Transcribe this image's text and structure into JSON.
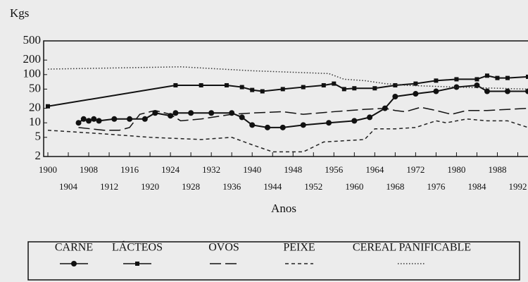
{
  "chart_data": {
    "type": "line",
    "y_label": "Kgs",
    "x_label": "Anos",
    "log_y": true,
    "xlim": [
      1900,
      1994
    ],
    "xticks": [
      1900,
      1904,
      1908,
      1912,
      1916,
      1920,
      1924,
      1928,
      1932,
      1936,
      1940,
      1944,
      1948,
      1952,
      1956,
      1960,
      1964,
      1968,
      1972,
      1976,
      1980,
      1984,
      1988,
      1992
    ],
    "ylim": [
      2,
      500
    ],
    "yticks": [
      500,
      200,
      100,
      50,
      20,
      10,
      5,
      2
    ],
    "series": [
      {
        "name": "CARNE",
        "color": "#111111",
        "line_style": "solid",
        "marker": "circle",
        "x": [
          1906,
          1907,
          1908,
          1909,
          1910,
          1913,
          1916,
          1919,
          1921,
          1924,
          1925,
          1928,
          1932,
          1936,
          1938,
          1940,
          1943,
          1946,
          1950,
          1955,
          1960,
          1963,
          1966,
          1968,
          1972,
          1976,
          1980,
          1984,
          1986,
          1990,
          1994
        ],
        "values": [
          10,
          12,
          11,
          12,
          11,
          12,
          12,
          12,
          16,
          14,
          16,
          16,
          16,
          16,
          13,
          9,
          8,
          8,
          9,
          10,
          11,
          13,
          20,
          35,
          40,
          45,
          55,
          60,
          45,
          45,
          45
        ]
      },
      {
        "name": "LÁCTEOS",
        "color": "#111111",
        "line_style": "solid",
        "marker": "square",
        "x": [
          1900,
          1925,
          1930,
          1935,
          1938,
          1940,
          1942,
          1946,
          1950,
          1954,
          1956,
          1958,
          1960,
          1964,
          1968,
          1972,
          1976,
          1980,
          1984,
          1986,
          1988,
          1990,
          1994
        ],
        "values": [
          22,
          60,
          60,
          60,
          55,
          48,
          45,
          50,
          55,
          60,
          65,
          50,
          52,
          52,
          60,
          65,
          75,
          80,
          80,
          95,
          85,
          85,
          90
        ]
      },
      {
        "name": "OVOS",
        "color": "#111111",
        "line_style": "long-dash",
        "marker": null,
        "x": [
          1906,
          1911,
          1914,
          1916,
          1918,
          1921,
          1924,
          1926,
          1930,
          1936,
          1940,
          1946,
          1950,
          1956,
          1962,
          1966,
          1968,
          1970,
          1973,
          1976,
          1979,
          1982,
          1986,
          1994
        ],
        "values": [
          8,
          7,
          7,
          8,
          15,
          18,
          15,
          11,
          12,
          15,
          16,
          17,
          15,
          17,
          19,
          20,
          18,
          17,
          21,
          18,
          15,
          18,
          18,
          20
        ]
      },
      {
        "name": "PEIXE",
        "color": "#222222",
        "line_style": "dash",
        "marker": null,
        "x": [
          1900,
          1910,
          1920,
          1930,
          1936,
          1940,
          1944,
          1950,
          1954,
          1962,
          1964,
          1968,
          1972,
          1976,
          1978,
          1982,
          1986,
          1990,
          1994
        ],
        "values": [
          7,
          6,
          5,
          4.5,
          5,
          3.5,
          2.5,
          2.5,
          4,
          4.5,
          7.5,
          7.5,
          8,
          11,
          10,
          12,
          11,
          11,
          8
        ]
      },
      {
        "name": "CEREAL PANIFICABLE",
        "color": "#333333",
        "line_style": "dotted",
        "marker": null,
        "x": [
          1900,
          1926,
          1940,
          1955,
          1958,
          1962,
          1966,
          1970,
          1980,
          1994
        ],
        "values": [
          130,
          145,
          120,
          105,
          80,
          75,
          65,
          60,
          55,
          50
        ]
      }
    ]
  }
}
